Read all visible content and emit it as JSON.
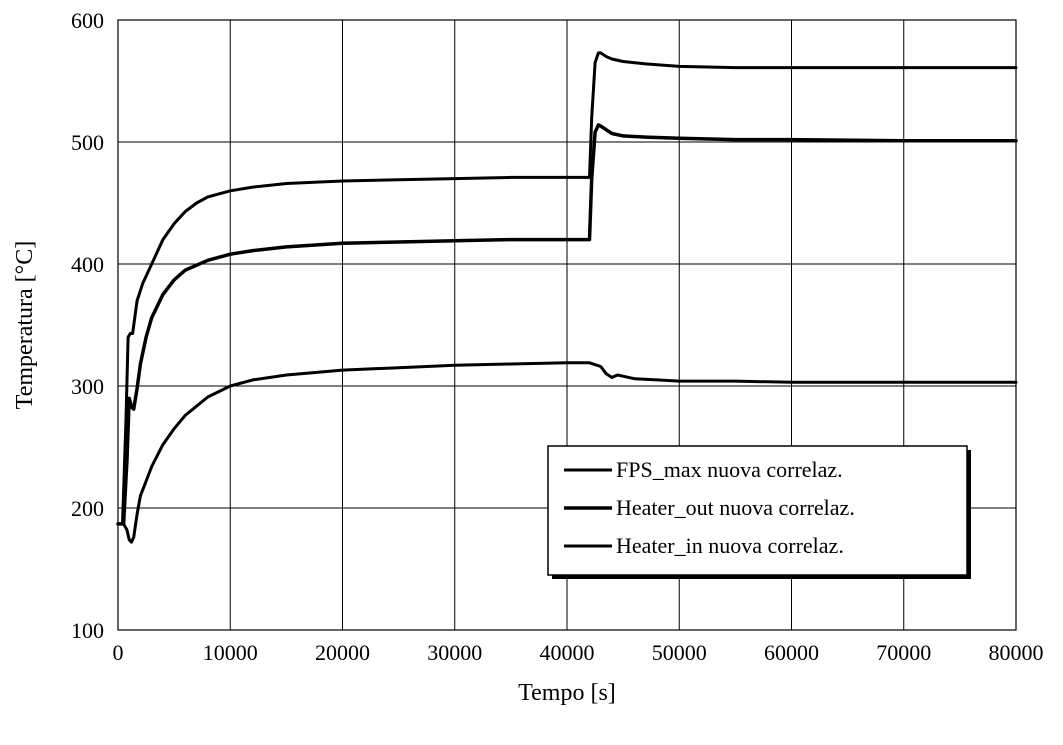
{
  "chart_data": {
    "type": "line",
    "xlabel": "Tempo [s]",
    "ylabel": "Temperatura [°C]",
    "xlim": [
      0,
      80000
    ],
    "ylim": [
      100,
      600
    ],
    "xticks": [
      0,
      10000,
      20000,
      30000,
      40000,
      50000,
      60000,
      70000,
      80000
    ],
    "yticks": [
      100,
      200,
      300,
      400,
      500,
      600
    ],
    "grid": true,
    "legend_position": "lower-right",
    "series": [
      {
        "name": "FPS_max nuova correlaz.",
        "color": "#000000",
        "x": [
          0,
          400,
          700,
          900,
          1100,
          1300,
          1700,
          2200,
          3000,
          4000,
          5000,
          6000,
          7000,
          8000,
          10000,
          12000,
          15000,
          20000,
          25000,
          30000,
          35000,
          40000,
          42000,
          42200,
          42500,
          42800,
          43000,
          43500,
          44000,
          45000,
          47000,
          50000,
          55000,
          60000,
          70000,
          80000
        ],
        "y": [
          187,
          187,
          270,
          340,
          343,
          343,
          370,
          384,
          400,
          420,
          433,
          443,
          450,
          455,
          460,
          463,
          466,
          468,
          469,
          470,
          471,
          471,
          471,
          520,
          565,
          573,
          573,
          570,
          568,
          566,
          564,
          562,
          561,
          561,
          561,
          561
        ]
      },
      {
        "name": "Heater_out nuova correlaz.",
        "color": "#000000",
        "x": [
          0,
          500,
          800,
          1000,
          1200,
          1400,
          1700,
          2000,
          2500,
          3000,
          4000,
          5000,
          6000,
          8000,
          10000,
          12000,
          15000,
          20000,
          25000,
          30000,
          35000,
          40000,
          42000,
          42200,
          42500,
          42800,
          43000,
          43500,
          44000,
          45000,
          47000,
          50000,
          55000,
          60000,
          70000,
          80000
        ],
        "y": [
          187,
          187,
          240,
          290,
          283,
          281,
          298,
          318,
          340,
          356,
          375,
          387,
          395,
          403,
          408,
          411,
          414,
          417,
          418,
          419,
          420,
          420,
          420,
          470,
          508,
          514,
          513,
          510,
          507,
          505,
          504,
          503,
          502,
          502,
          501,
          501
        ]
      },
      {
        "name": "Heater_in nuova correlaz.",
        "color": "#000000",
        "x": [
          0,
          500,
          800,
          1000,
          1200,
          1400,
          1700,
          2000,
          2500,
          3000,
          4000,
          5000,
          6000,
          8000,
          10000,
          12000,
          15000,
          20000,
          25000,
          30000,
          35000,
          40000,
          42000,
          43000,
          43500,
          44000,
          44500,
          45000,
          46000,
          48000,
          50000,
          55000,
          60000,
          70000,
          75000,
          80000
        ],
        "y": [
          187,
          187,
          182,
          174,
          172,
          176,
          195,
          210,
          222,
          234,
          252,
          265,
          276,
          291,
          300,
          305,
          309,
          313,
          315,
          317,
          318,
          319,
          319,
          316,
          310,
          307,
          309,
          308,
          306,
          305,
          304,
          304,
          303,
          303,
          303,
          303
        ]
      }
    ]
  }
}
